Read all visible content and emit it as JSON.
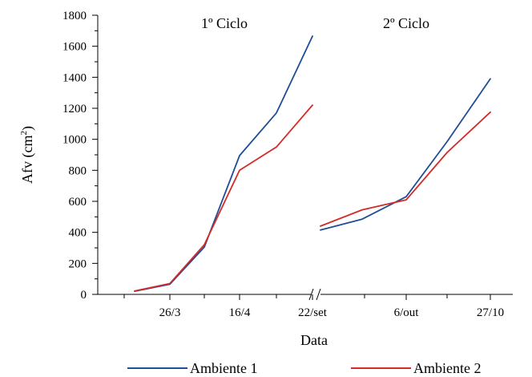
{
  "chart_data": {
    "type": "line",
    "ylabel": "Afv (cm",
    "ylabel_sup": "2",
    "ylabel_close": ")",
    "xlabel": "Data",
    "ylim": [
      0,
      1800
    ],
    "y_ticks": [
      0,
      200,
      400,
      600,
      800,
      1000,
      1200,
      1400,
      1600,
      1800
    ],
    "grid": false,
    "legend_position": "bottom",
    "colors": {
      "Ambiente 1": "#1f4e96",
      "Ambiente 2": "#d42a2a"
    },
    "panels": [
      {
        "label": "1º Ciclo",
        "x_ticks": [
          "26/3",
          "16/4",
          "22/set"
        ],
        "series": [
          {
            "name": "Ambiente 1",
            "values": [
              20,
              65,
              305,
              895,
              1170,
              1665
            ]
          },
          {
            "name": "Ambiente 2",
            "values": [
              22,
              70,
              320,
              800,
              950,
              1220
            ]
          }
        ]
      },
      {
        "label": "2º Ciclo",
        "x_ticks": [
          "6/out",
          "27/10"
        ],
        "series": [
          {
            "name": "Ambiente 1",
            "values": [
              415,
              485,
              630,
              985,
              1390
            ]
          },
          {
            "name": "Ambiente 2",
            "values": [
              440,
              545,
              610,
              915,
              1175
            ]
          }
        ]
      }
    ],
    "legend": [
      {
        "name": "Ambiente 1"
      },
      {
        "name": "Ambiente 2"
      }
    ]
  }
}
